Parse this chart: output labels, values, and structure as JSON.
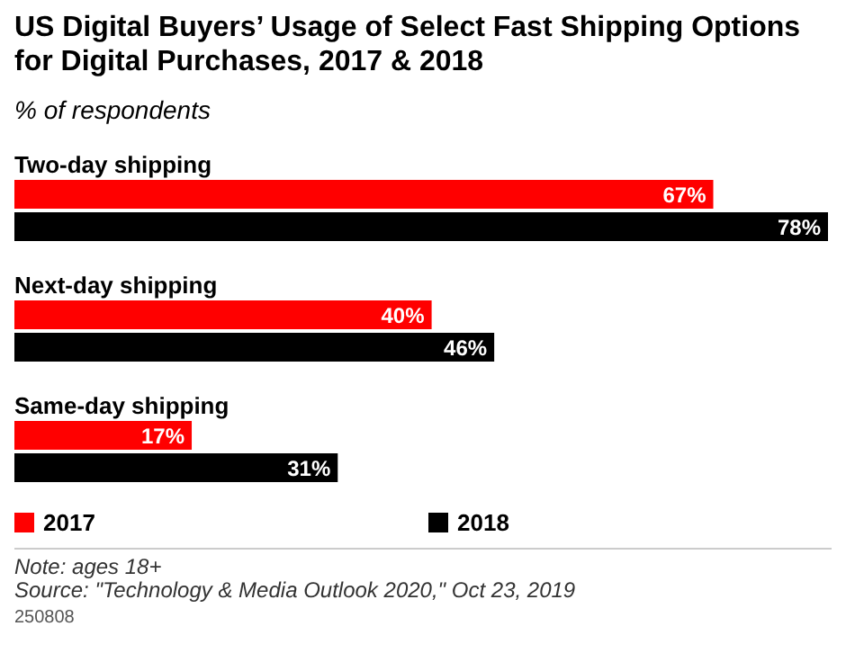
{
  "chart_data": {
    "type": "bar",
    "orientation": "horizontal",
    "title": "US Digital Buyers’ Usage of Select Fast Shipping Options for Digital Purchases, 2017 & 2018",
    "subtitle": "% of respondents",
    "categories": [
      "Two-day shipping",
      "Next-day shipping",
      "Same-day shipping"
    ],
    "series": [
      {
        "name": "2017",
        "color": "#ff0000",
        "values": [
          67,
          40,
          17
        ],
        "value_labels": [
          "67%",
          "40%",
          "17%"
        ]
      },
      {
        "name": "2018",
        "color": "#000000",
        "values": [
          78,
          46,
          31
        ],
        "value_labels": [
          "78%",
          "46%",
          "31%"
        ]
      }
    ],
    "legend": "bottom",
    "annotations": [
      "Note: ages 18+",
      "Source: \"Technology & Media Outlook 2020,\" Oct 23, 2019",
      "250808"
    ]
  }
}
